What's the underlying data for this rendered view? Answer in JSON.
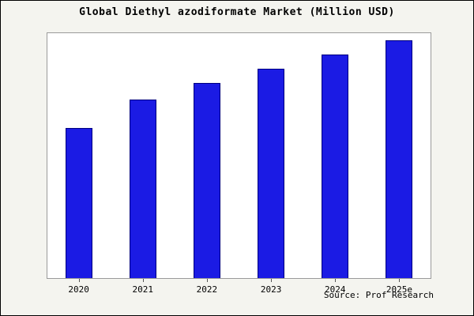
{
  "chart_data": {
    "type": "bar",
    "title": "Global Diethyl azodiformate Market (Million USD)",
    "categories": [
      "2020",
      "2021",
      "2022",
      "2023",
      "2024",
      "2025e"
    ],
    "values": [
      63,
      75,
      82,
      88,
      94,
      100
    ],
    "ylim": [
      0,
      103
    ],
    "xlabel": "",
    "ylabel": "",
    "grid": false,
    "legend": "none",
    "bar_fill_color": "#1b1be4",
    "bar_border_color": "#000080",
    "source": "Source: Prof Research"
  }
}
